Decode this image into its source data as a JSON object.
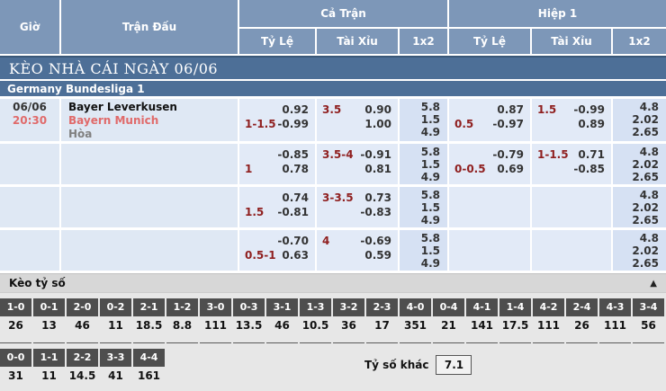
{
  "header": {
    "time": "Giờ",
    "match": "Trận Đấu",
    "full_match": "Cả Trận",
    "first_half": "Hiệp 1",
    "odds": "Tỷ Lệ",
    "over_under": "Tài Xỉu",
    "one_x_two": "1x2"
  },
  "section_title": "KÈO NHÀ CÁI NGÀY 06/06",
  "league": "Germany Bundesliga 1",
  "colors": {
    "header_blue": "#7d97b8",
    "bar_blue": "#4d6f97",
    "row_light_blue": "#e2eaf7",
    "x2_blue": "#d6e1f3",
    "accent_red": "#8f1f1f",
    "team_red": "#e06a6a",
    "tile_gray": "#4e4e4e"
  },
  "odds_rows": [
    {
      "date": "06/06",
      "time": "20:30",
      "home": "Bayer Leverkusen",
      "away": "Bayern Munich",
      "draw": "Hòa",
      "ft_hdp": {
        "line": "1-1.5",
        "top": "0.92",
        "bottom": "-0.99"
      },
      "ft_ou": {
        "line": "3.5",
        "top": "0.90",
        "bottom": "1.00"
      },
      "ft_1x2": [
        "5.8",
        "1.5",
        "4.9"
      ],
      "h1_hdp": {
        "line": "0.5",
        "top": "0.87",
        "bottom": "-0.97"
      },
      "h1_ou": {
        "line": "1.5",
        "top": "-0.99",
        "bottom": "0.89"
      },
      "h1_1x2": [
        "4.8",
        "2.02",
        "2.65"
      ]
    },
    {
      "ft_hdp": {
        "line": "1",
        "top": "-0.85",
        "bottom": "0.78"
      },
      "ft_ou": {
        "line": "3.5-4",
        "top": "-0.91",
        "bottom": "0.81"
      },
      "ft_1x2": [
        "5.8",
        "1.5",
        "4.9"
      ],
      "h1_hdp": {
        "line": "0-0.5",
        "top": "-0.79",
        "bottom": "0.69"
      },
      "h1_ou": {
        "line": "1-1.5",
        "top": "0.71",
        "bottom": "-0.85"
      },
      "h1_1x2": [
        "4.8",
        "2.02",
        "2.65"
      ]
    },
    {
      "ft_hdp": {
        "line": "1.5",
        "top": "0.74",
        "bottom": "-0.81"
      },
      "ft_ou": {
        "line": "3-3.5",
        "top": "0.73",
        "bottom": "-0.83"
      },
      "ft_1x2": [
        "5.8",
        "1.5",
        "4.9"
      ],
      "h1_hdp": {},
      "h1_ou": {},
      "h1_1x2": [
        "4.8",
        "2.02",
        "2.65"
      ]
    },
    {
      "ft_hdp": {
        "line": "0.5-1",
        "top": "-0.70",
        "bottom": "0.63"
      },
      "ft_ou": {
        "line": "4",
        "top": "-0.69",
        "bottom": "0.59"
      },
      "ft_1x2": [
        "5.8",
        "1.5",
        "4.9"
      ],
      "h1_hdp": {},
      "h1_ou": {},
      "h1_1x2": [
        "4.8",
        "2.02",
        "2.65"
      ]
    }
  ],
  "score_section": {
    "title": "Kèo tỷ số",
    "collapse_icon": "▲",
    "row1": [
      {
        "score": "1-0",
        "odds": "26"
      },
      {
        "score": "0-1",
        "odds": "13"
      },
      {
        "score": "2-0",
        "odds": "46"
      },
      {
        "score": "0-2",
        "odds": "11"
      },
      {
        "score": "2-1",
        "odds": "18.5"
      },
      {
        "score": "1-2",
        "odds": "8.8"
      },
      {
        "score": "3-0",
        "odds": "111"
      },
      {
        "score": "0-3",
        "odds": "13.5"
      },
      {
        "score": "3-1",
        "odds": "46"
      },
      {
        "score": "1-3",
        "odds": "10.5"
      },
      {
        "score": "3-2",
        "odds": "36"
      },
      {
        "score": "2-3",
        "odds": "17"
      },
      {
        "score": "4-0",
        "odds": "351"
      },
      {
        "score": "0-4",
        "odds": "21"
      },
      {
        "score": "4-1",
        "odds": "141"
      },
      {
        "score": "1-4",
        "odds": "17.5"
      },
      {
        "score": "4-2",
        "odds": "111"
      },
      {
        "score": "2-4",
        "odds": "26"
      },
      {
        "score": "4-3",
        "odds": "111"
      },
      {
        "score": "3-4",
        "odds": "56"
      }
    ],
    "row2": [
      {
        "score": "0-0",
        "odds": "31"
      },
      {
        "score": "1-1",
        "odds": "11"
      },
      {
        "score": "2-2",
        "odds": "14.5"
      },
      {
        "score": "3-3",
        "odds": "41"
      },
      {
        "score": "4-4",
        "odds": "161"
      }
    ],
    "other_label": "Tỷ số khác",
    "other_value": "7.1"
  }
}
